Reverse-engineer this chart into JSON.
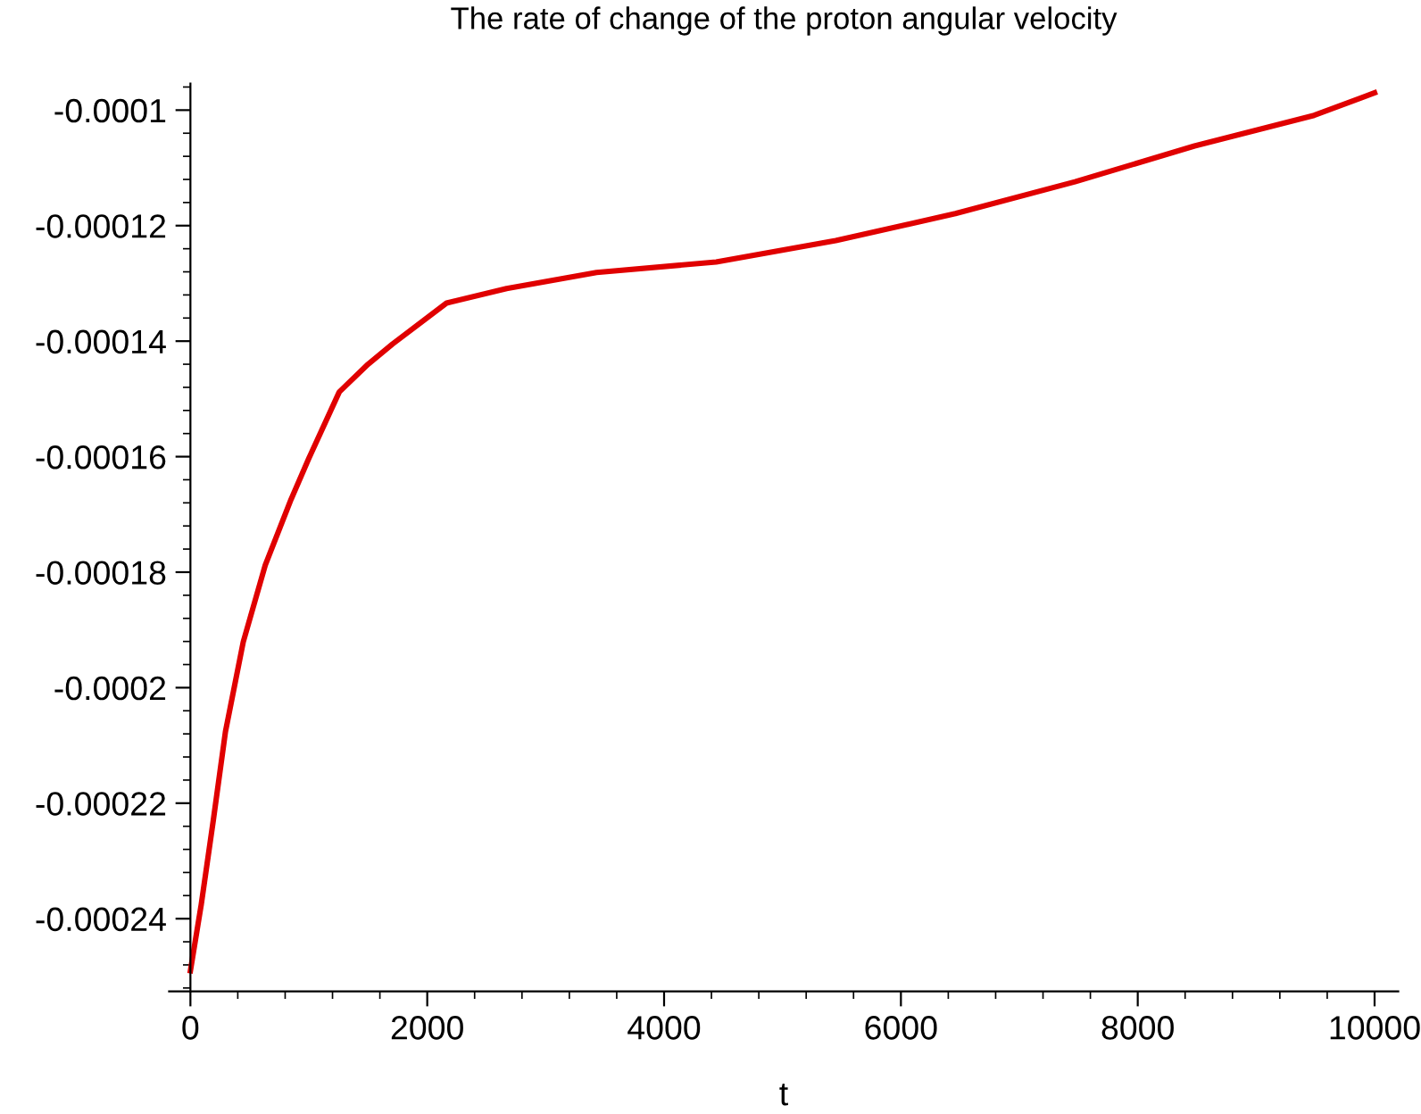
{
  "chart_data": {
    "type": "line",
    "title": "The rate of change of the proton angular velocity",
    "xlabel": "t",
    "xlim": [
      -180,
      10200
    ],
    "ylim": [
      -0.0002526,
      -9.54e-05
    ],
    "xticks": [
      0,
      2000,
      4000,
      6000,
      8000,
      10000
    ],
    "yticks": [
      -0.0001,
      -0.00012,
      -0.00014,
      -0.00016,
      -0.00018,
      -0.0002,
      -0.00022,
      -0.00024
    ],
    "grid": false,
    "legend": false,
    "marker": "none",
    "line_style": "solid",
    "series": [
      {
        "color": "#e00000",
        "x": [
          0,
          91,
          193,
          296,
          446,
          632,
          850,
          1000,
          1257,
          1500,
          1707,
          2163,
          2670,
          3430,
          4440,
          5450,
          6460,
          7470,
          8480,
          9490,
          10000
        ],
        "values": [
          -0.000249,
          -0.0002376,
          -0.000223,
          -0.0002076,
          -0.0001921,
          -0.0001788,
          -0.0001674,
          -0.0001603,
          -0.0001488,
          -0.000144,
          -0.0001405,
          -0.0001334,
          -0.0001309,
          -0.0001281,
          -0.0001263,
          -0.0001226,
          -0.0001179,
          -0.0001124,
          -0.0001062,
          -0.0001009,
          -9.7e-05
        ]
      }
    ]
  }
}
